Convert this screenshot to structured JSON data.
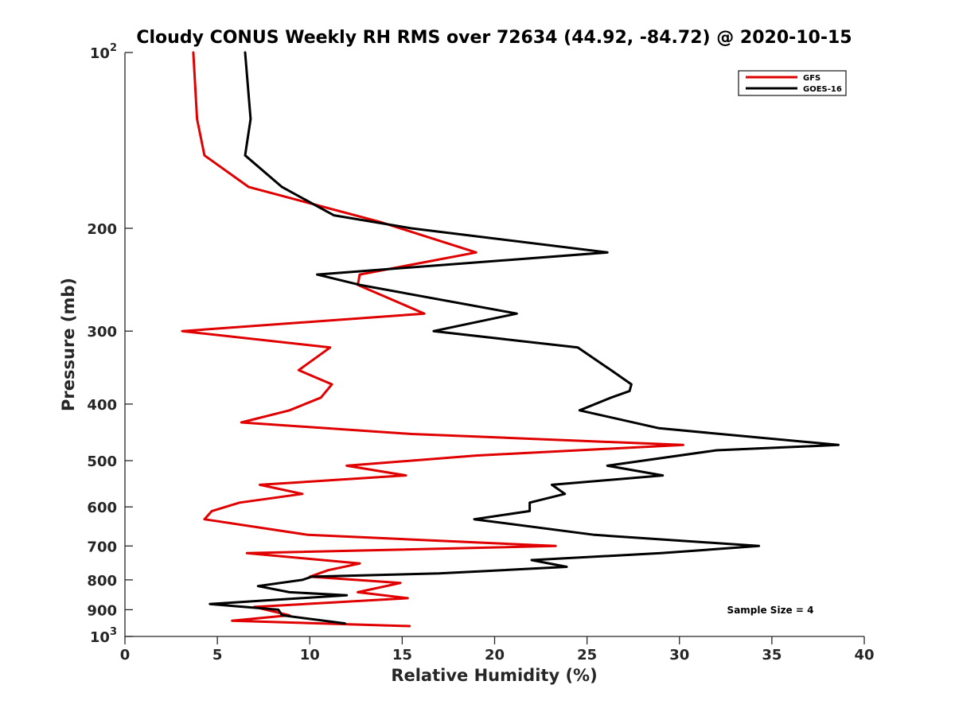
{
  "chart_data": {
    "type": "line",
    "title": "Cloudy CONUS Weekly RH RMS over 72634 (44.92, -84.72) @ 2020-10-15",
    "xlabel": "Relative Humidity (%)",
    "ylabel": "Pressure (mb)",
    "xlim": [
      0,
      40
    ],
    "ylim": [
      100,
      1000
    ],
    "y_scale": "log",
    "y_inverted": true,
    "grid": false,
    "legend_position": "top-right",
    "x_ticks": [
      "0",
      "5",
      "10",
      "15",
      "20",
      "25",
      "30",
      "35",
      "40"
    ],
    "y_ticks": [
      {
        "value": 100,
        "base": "10",
        "exp": "2"
      },
      {
        "value": 200,
        "label": "200"
      },
      {
        "value": 300,
        "label": "300"
      },
      {
        "value": 400,
        "label": "400"
      },
      {
        "value": 500,
        "label": "500"
      },
      {
        "value": 600,
        "label": "600"
      },
      {
        "value": 700,
        "label": "700"
      },
      {
        "value": 800,
        "label": "800"
      },
      {
        "value": 900,
        "label": "900"
      },
      {
        "value": 1000,
        "base": "10",
        "exp": "3"
      }
    ],
    "annotation": "Sample Size = 4",
    "series": [
      {
        "name": "GFS",
        "color": "#e00000",
        "x": [
          3.7,
          3.9,
          4.3,
          6.7,
          13.8,
          19.0,
          12.7,
          12.6,
          16.2,
          3.1,
          11.1,
          9.4,
          11.2,
          10.6,
          8.9,
          6.3,
          15.5,
          30.2,
          19.0,
          12.0,
          15.2,
          7.3,
          9.6,
          6.2,
          4.7,
          4.3,
          9.9,
          23.3,
          6.6,
          12.7,
          11.0,
          10.0,
          14.9,
          12.6,
          15.3,
          7.0,
          8.9,
          5.8,
          15.4
        ],
        "y": [
          100,
          130,
          150,
          170,
          195,
          220,
          240,
          250,
          280,
          300,
          320,
          350,
          370,
          390,
          410,
          430,
          450,
          470,
          490,
          510,
          530,
          550,
          570,
          590,
          610,
          630,
          670,
          700,
          720,
          750,
          770,
          790,
          810,
          840,
          860,
          890,
          920,
          940,
          960
        ]
      },
      {
        "name": "GOES-16",
        "color": "#000000",
        "x": [
          6.5,
          6.8,
          6.5,
          8.5,
          11.3,
          15.5,
          26.1,
          10.4,
          12.7,
          21.2,
          16.7,
          24.5,
          26.3,
          27.4,
          27.3,
          26.3,
          24.6,
          28.9,
          38.6,
          32.0,
          26.1,
          29.1,
          23.1,
          23.8,
          21.9,
          21.9,
          18.9,
          25.4,
          34.3,
          29.0,
          22.0,
          23.9,
          17.0,
          10.1,
          9.6,
          7.2,
          8.9,
          12.0,
          4.6,
          8.3,
          8.5,
          11.9
        ],
        "y": [
          100,
          130,
          150,
          170,
          190,
          200,
          220,
          240,
          250,
          280,
          300,
          320,
          350,
          370,
          380,
          390,
          410,
          440,
          470,
          480,
          510,
          530,
          550,
          570,
          590,
          610,
          630,
          670,
          700,
          720,
          740,
          760,
          780,
          790,
          800,
          820,
          840,
          850,
          880,
          900,
          920,
          950
        ]
      }
    ]
  }
}
